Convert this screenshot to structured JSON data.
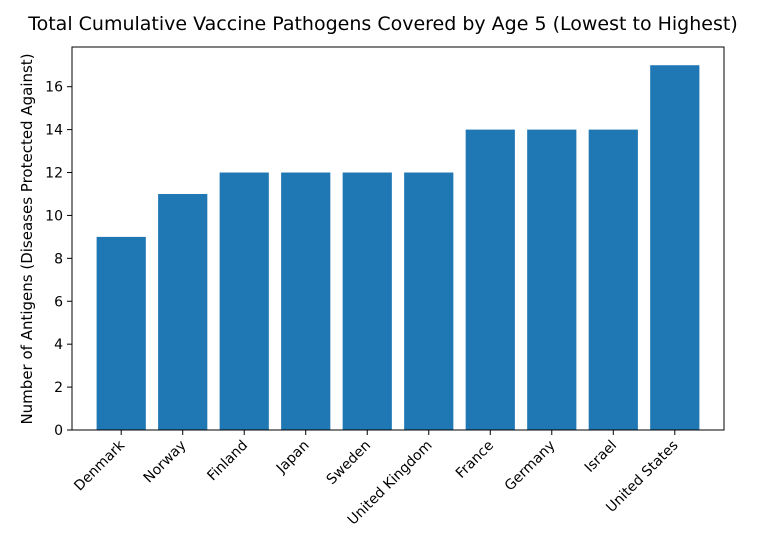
{
  "chart_data": {
    "type": "bar",
    "title": "Total Cumulative Vaccine Pathogens Covered by Age 5 (Lowest to Highest)",
    "xlabel": "",
    "ylabel": "Number of Antigens (Diseases Protected Against)",
    "categories": [
      "Denmark",
      "Norway",
      "Finland",
      "Japan",
      "Sweden",
      "United Kingdom",
      "France",
      "Germany",
      "Israel",
      "United States"
    ],
    "values": [
      9,
      11,
      12,
      12,
      12,
      12,
      14,
      14,
      14,
      17
    ],
    "ylim": [
      0,
      17.85
    ],
    "yticks": [
      0,
      2,
      4,
      6,
      8,
      10,
      12,
      14,
      16
    ],
    "bar_color": "#1f77b4",
    "grid": false,
    "legend": "none"
  }
}
